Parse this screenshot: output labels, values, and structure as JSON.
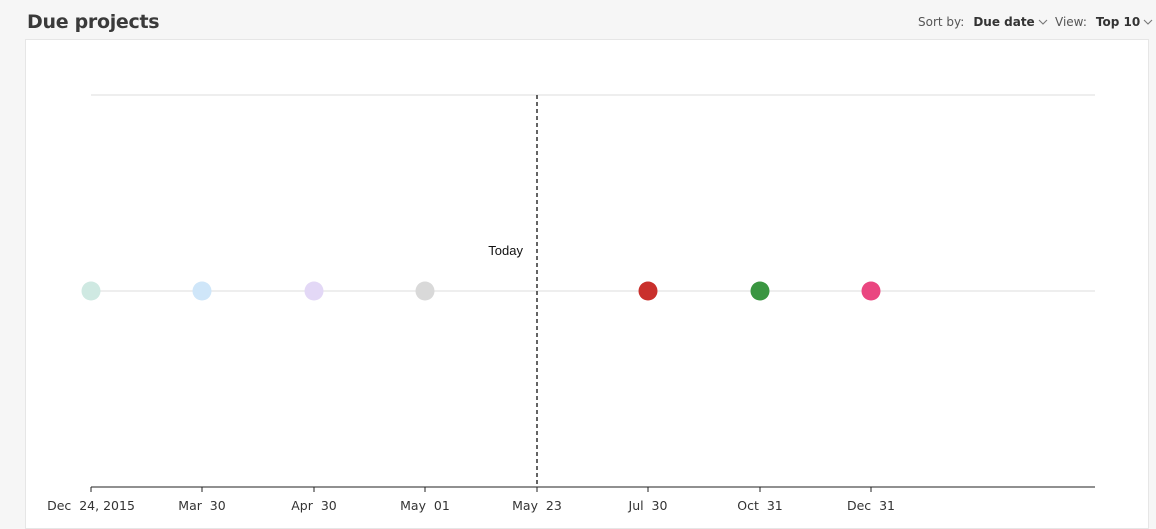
{
  "header": {
    "title": "Due projects",
    "sort_label": "Sort by:",
    "sort_value": "Due date",
    "view_label": "View:",
    "view_value": "Top 10"
  },
  "chart_data": {
    "type": "scatter",
    "today_label": "Today",
    "x_tick_labels": [
      "Dec  24, 2015",
      "Mar  30",
      "Apr  30",
      "May  01",
      "May  23",
      "Jul  30",
      "Oct  31",
      "Dec  31"
    ],
    "points": [
      {
        "x": "Dec  24, 2015",
        "color": "#cfe9e2"
      },
      {
        "x": "Mar  30",
        "color": "#cfe6f9"
      },
      {
        "x": "Apr  30",
        "color": "#e3d8f6"
      },
      {
        "x": "May  01",
        "color": "#d9d9d9"
      },
      {
        "x": "Jul  30",
        "color": "#c9302c"
      },
      {
        "x": "Oct  31",
        "color": "#3a9641"
      },
      {
        "x": "Dec  31",
        "color": "#ea4680"
      }
    ],
    "today_at": "May  23",
    "grid": true
  }
}
